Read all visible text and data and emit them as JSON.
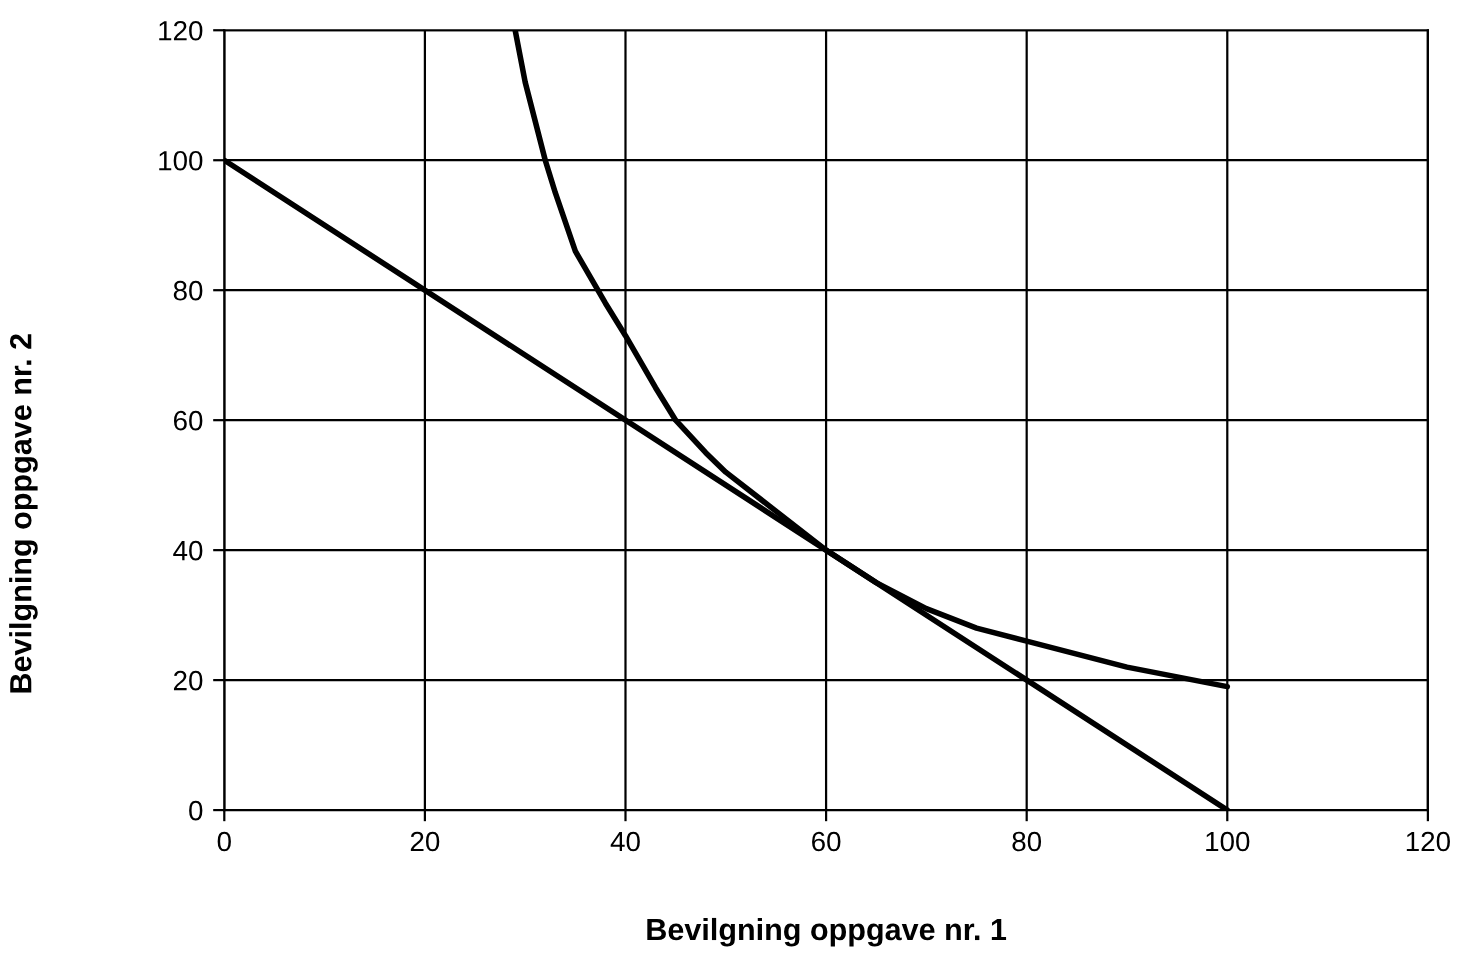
{
  "chart_data": {
    "type": "line",
    "xlabel": "Bevilgning oppgave nr. 1",
    "ylabel": "Bevilgning oppgave nr. 2",
    "series": [
      {
        "color": "#000000",
        "x": [
          0,
          100
        ],
        "values": [
          100,
          0
        ]
      },
      {
        "color": "#000000",
        "x": [
          29,
          30,
          32,
          33,
          35,
          38,
          40,
          43,
          45,
          48,
          50,
          55,
          60,
          65,
          70,
          75,
          80,
          90,
          100
        ],
        "values": [
          120,
          112,
          100,
          95,
          86,
          78,
          73,
          65,
          60,
          55,
          52,
          46,
          40,
          35,
          31,
          28,
          26,
          22,
          19
        ]
      }
    ],
    "xlim": [
      0,
      120
    ],
    "xticks": [
      0,
      20,
      40,
      60,
      80,
      100,
      120
    ],
    "ylim": [
      0,
      120
    ],
    "yticks": [
      0,
      20,
      40,
      60,
      80,
      100,
      120
    ],
    "grid": true,
    "marker": "none",
    "line_style": "solid"
  }
}
